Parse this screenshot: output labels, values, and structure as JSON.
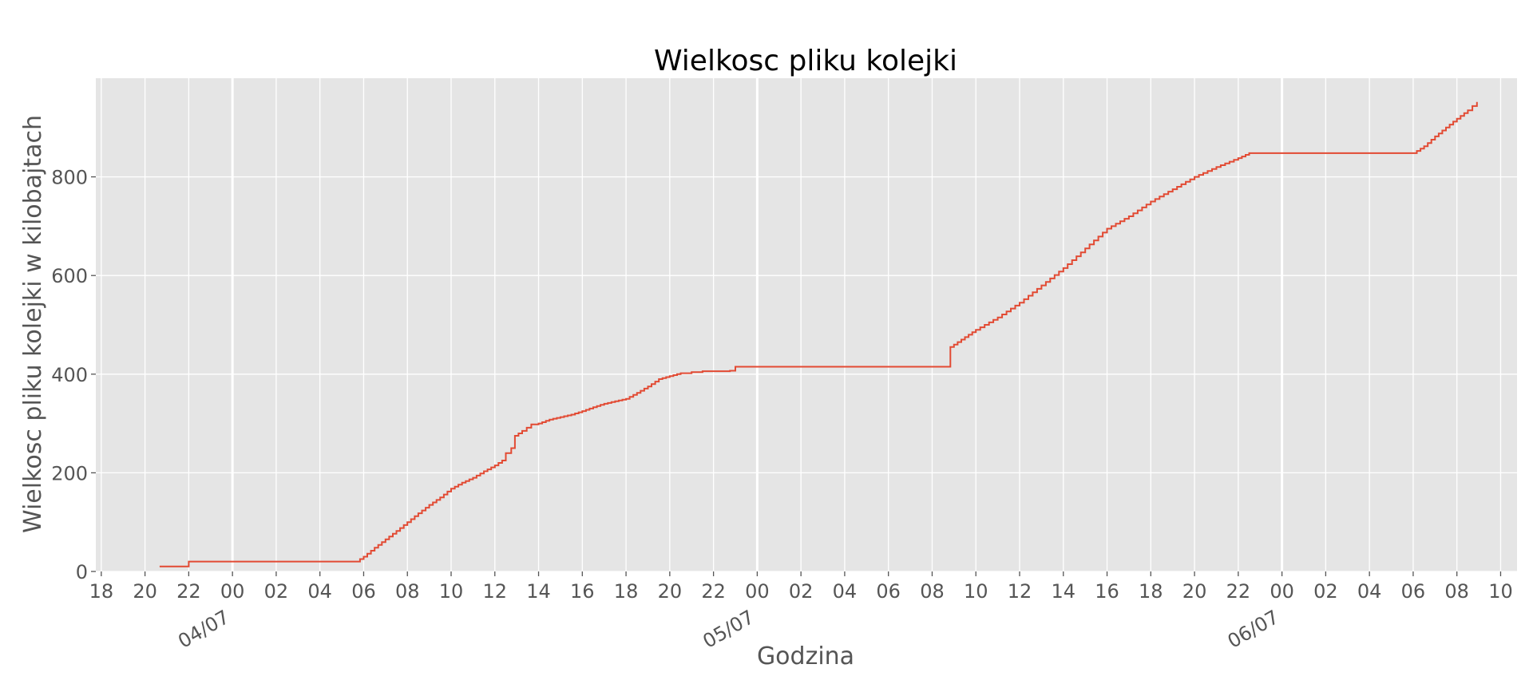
{
  "chart_data": {
    "type": "line",
    "title": "Wielkosc pliku kolejki",
    "xlabel": "Godzina",
    "ylabel": "Wielkosc pliku kolejki w kilobajtach",
    "x_unit": "hour",
    "xlim": [
      "2021-07-03T17:45",
      "2021-07-06T10:45"
    ],
    "ylim": [
      0,
      1000
    ],
    "yticks": [
      0,
      200,
      400,
      600,
      800
    ],
    "xticks": [
      {
        "t": "2021-07-03T18:00",
        "label": "18"
      },
      {
        "t": "2021-07-03T20:00",
        "label": "20"
      },
      {
        "t": "2021-07-03T22:00",
        "label": "22"
      },
      {
        "t": "2021-07-04T00:00",
        "label": "00"
      },
      {
        "t": "2021-07-04T02:00",
        "label": "02"
      },
      {
        "t": "2021-07-04T04:00",
        "label": "04"
      },
      {
        "t": "2021-07-04T06:00",
        "label": "06"
      },
      {
        "t": "2021-07-04T08:00",
        "label": "08"
      },
      {
        "t": "2021-07-04T10:00",
        "label": "10"
      },
      {
        "t": "2021-07-04T12:00",
        "label": "12"
      },
      {
        "t": "2021-07-04T14:00",
        "label": "14"
      },
      {
        "t": "2021-07-04T16:00",
        "label": "16"
      },
      {
        "t": "2021-07-04T18:00",
        "label": "18"
      },
      {
        "t": "2021-07-04T20:00",
        "label": "20"
      },
      {
        "t": "2021-07-04T22:00",
        "label": "22"
      },
      {
        "t": "2021-07-05T00:00",
        "label": "00"
      },
      {
        "t": "2021-07-05T02:00",
        "label": "02"
      },
      {
        "t": "2021-07-05T04:00",
        "label": "04"
      },
      {
        "t": "2021-07-05T06:00",
        "label": "06"
      },
      {
        "t": "2021-07-05T08:00",
        "label": "08"
      },
      {
        "t": "2021-07-05T10:00",
        "label": "10"
      },
      {
        "t": "2021-07-05T12:00",
        "label": "12"
      },
      {
        "t": "2021-07-05T14:00",
        "label": "14"
      },
      {
        "t": "2021-07-05T16:00",
        "label": "16"
      },
      {
        "t": "2021-07-05T18:00",
        "label": "18"
      },
      {
        "t": "2021-07-05T20:00",
        "label": "20"
      },
      {
        "t": "2021-07-05T22:00",
        "label": "22"
      },
      {
        "t": "2021-07-06T00:00",
        "label": "00"
      },
      {
        "t": "2021-07-06T02:00",
        "label": "02"
      },
      {
        "t": "2021-07-06T04:00",
        "label": "04"
      },
      {
        "t": "2021-07-06T06:00",
        "label": "06"
      },
      {
        "t": "2021-07-06T08:00",
        "label": "08"
      },
      {
        "t": "2021-07-06T10:00",
        "label": "10"
      }
    ],
    "date_ticks": [
      {
        "t": "2021-07-04T00:00",
        "label": "04/07"
      },
      {
        "t": "2021-07-05T00:00",
        "label": "05/07"
      },
      {
        "t": "2021-07-06T00:00",
        "label": "06/07"
      }
    ],
    "grid": true,
    "style": "ggplot",
    "series": [
      {
        "color": "#e24a33",
        "points": [
          [
            "2021-07-03T20:40",
            10
          ],
          [
            "2021-07-03T21:55",
            10
          ],
          [
            "2021-07-03T22:00",
            20
          ],
          [
            "2021-07-04T05:40",
            20
          ],
          [
            "2021-07-04T06:00",
            30
          ],
          [
            "2021-07-04T06:30",
            48
          ],
          [
            "2021-07-04T07:00",
            65
          ],
          [
            "2021-07-04T07:30",
            82
          ],
          [
            "2021-07-04T08:00",
            100
          ],
          [
            "2021-07-04T08:30",
            118
          ],
          [
            "2021-07-04T09:00",
            135
          ],
          [
            "2021-07-04T09:30",
            150
          ],
          [
            "2021-07-04T10:00",
            168
          ],
          [
            "2021-07-04T10:30",
            180
          ],
          [
            "2021-07-04T11:00",
            190
          ],
          [
            "2021-07-04T11:30",
            203
          ],
          [
            "2021-07-04T12:00",
            215
          ],
          [
            "2021-07-04T12:20",
            225
          ],
          [
            "2021-07-04T12:30",
            240
          ],
          [
            "2021-07-04T12:45",
            250
          ],
          [
            "2021-07-04T12:55",
            275
          ],
          [
            "2021-07-04T13:15",
            285
          ],
          [
            "2021-07-04T13:40",
            298
          ],
          [
            "2021-07-04T14:00",
            300
          ],
          [
            "2021-07-04T14:30",
            308
          ],
          [
            "2021-07-04T15:00",
            313
          ],
          [
            "2021-07-04T15:30",
            318
          ],
          [
            "2021-07-04T16:00",
            325
          ],
          [
            "2021-07-04T16:30",
            333
          ],
          [
            "2021-07-04T17:00",
            340
          ],
          [
            "2021-07-04T17:30",
            345
          ],
          [
            "2021-07-04T18:00",
            350
          ],
          [
            "2021-07-04T18:30",
            362
          ],
          [
            "2021-07-04T19:00",
            375
          ],
          [
            "2021-07-04T19:30",
            390
          ],
          [
            "2021-07-04T20:00",
            396
          ],
          [
            "2021-07-04T20:30",
            402
          ],
          [
            "2021-07-04T21:00",
            404
          ],
          [
            "2021-07-04T21:30",
            406
          ],
          [
            "2021-07-04T22:45",
            407
          ],
          [
            "2021-07-04T23:00",
            415
          ],
          [
            "2021-07-05T08:45",
            415
          ],
          [
            "2021-07-05T08:50",
            455
          ],
          [
            "2021-07-05T09:30",
            475
          ],
          [
            "2021-07-05T10:00",
            490
          ],
          [
            "2021-07-05T11:00",
            515
          ],
          [
            "2021-07-05T12:00",
            545
          ],
          [
            "2021-07-05T13:00",
            580
          ],
          [
            "2021-07-05T14:00",
            615
          ],
          [
            "2021-07-05T15:00",
            655
          ],
          [
            "2021-07-05T16:00",
            695
          ],
          [
            "2021-07-05T17:00",
            720
          ],
          [
            "2021-07-05T18:00",
            750
          ],
          [
            "2021-07-05T19:00",
            775
          ],
          [
            "2021-07-05T20:00",
            800
          ],
          [
            "2021-07-05T21:00",
            820
          ],
          [
            "2021-07-05T22:00",
            838
          ],
          [
            "2021-07-05T22:30",
            848
          ],
          [
            "2021-07-06T06:00",
            848
          ],
          [
            "2021-07-06T06:30",
            862
          ],
          [
            "2021-07-06T07:00",
            882
          ],
          [
            "2021-07-06T07:30",
            900
          ],
          [
            "2021-07-06T08:00",
            918
          ],
          [
            "2021-07-06T08:30",
            935
          ],
          [
            "2021-07-06T08:55",
            952
          ]
        ]
      }
    ]
  }
}
